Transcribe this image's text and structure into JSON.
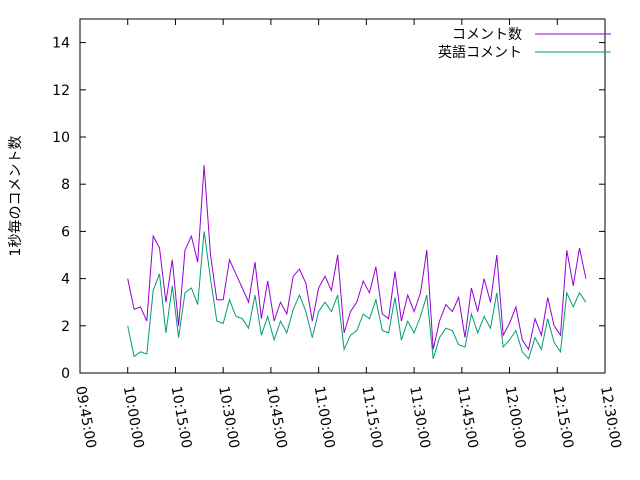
{
  "chart_data": {
    "type": "line",
    "y_label": "1秒毎のコメント数",
    "x": [
      "10:00:00",
      "10:02:00",
      "10:04:00",
      "10:06:00",
      "10:08:00",
      "10:10:00",
      "10:12:00",
      "10:14:00",
      "10:16:00",
      "10:18:00",
      "10:20:00",
      "10:22:00",
      "10:24:00",
      "10:26:00",
      "10:28:00",
      "10:30:00",
      "10:32:00",
      "10:34:00",
      "10:36:00",
      "10:38:00",
      "10:40:00",
      "10:42:00",
      "10:44:00",
      "10:46:00",
      "10:48:00",
      "10:50:00",
      "10:52:00",
      "10:54:00",
      "10:56:00",
      "10:58:00",
      "11:00:00",
      "11:02:00",
      "11:04:00",
      "11:06:00",
      "11:08:00",
      "11:10:00",
      "11:12:00",
      "11:14:00",
      "11:16:00",
      "11:18:00",
      "11:20:00",
      "11:22:00",
      "11:24:00",
      "11:26:00",
      "11:28:00",
      "11:30:00",
      "11:32:00",
      "11:34:00",
      "11:36:00",
      "11:38:00",
      "11:40:00",
      "11:42:00",
      "11:44:00",
      "11:46:00",
      "11:48:00",
      "11:50:00",
      "11:52:00",
      "11:54:00",
      "11:56:00",
      "11:58:00",
      "12:00:00",
      "12:02:00",
      "12:04:00",
      "12:06:00",
      "12:08:00",
      "12:10:00",
      "12:12:00",
      "12:14:00",
      "12:16:00",
      "12:18:00",
      "12:20:00",
      "12:22:00",
      "12:24:00"
    ],
    "series": [
      {
        "name": "コメント数",
        "color": "#9400d3",
        "values": [
          4.0,
          2.7,
          2.8,
          2.2,
          5.8,
          5.3,
          3.0,
          4.8,
          2.0,
          5.2,
          5.8,
          4.7,
          8.8,
          5.0,
          3.1,
          3.1,
          4.8,
          4.2,
          3.6,
          3.0,
          4.7,
          2.3,
          3.9,
          2.2,
          3.0,
          2.5,
          4.1,
          4.4,
          3.8,
          2.2,
          3.6,
          4.1,
          3.5,
          5.0,
          1.7,
          2.6,
          3.0,
          3.9,
          3.4,
          4.5,
          2.5,
          2.3,
          4.3,
          2.2,
          3.3,
          2.6,
          3.4,
          5.2,
          1.0,
          2.2,
          2.9,
          2.6,
          3.2,
          1.5,
          3.6,
          2.6,
          4.0,
          3.0,
          5.0,
          1.6,
          2.1,
          2.8,
          1.4,
          1.0,
          2.3,
          1.6,
          3.2,
          2.0,
          1.6,
          5.2,
          3.7,
          5.3,
          4.0
        ]
      },
      {
        "name": "英語コメント",
        "color": "#009e73",
        "values": [
          2.0,
          0.7,
          0.9,
          0.8,
          3.5,
          4.2,
          1.7,
          3.7,
          1.5,
          3.4,
          3.6,
          2.9,
          6.0,
          4.0,
          2.2,
          2.1,
          3.1,
          2.4,
          2.3,
          1.9,
          3.3,
          1.6,
          2.4,
          1.4,
          2.2,
          1.7,
          2.7,
          3.3,
          2.6,
          1.5,
          2.6,
          3.0,
          2.6,
          3.3,
          1.0,
          1.6,
          1.8,
          2.5,
          2.3,
          3.1,
          1.8,
          1.7,
          3.2,
          1.4,
          2.2,
          1.7,
          2.4,
          3.3,
          0.6,
          1.5,
          1.9,
          1.8,
          1.2,
          1.1,
          2.5,
          1.7,
          2.4,
          1.9,
          3.4,
          1.1,
          1.4,
          1.8,
          0.9,
          0.6,
          1.5,
          1.0,
          2.3,
          1.3,
          0.9,
          3.4,
          2.8,
          3.4,
          3.0
        ]
      }
    ],
    "xlim": [
      "09:45:00",
      "12:30:00"
    ],
    "xticks": [
      "09:45:00",
      "10:00:00",
      "10:15:00",
      "10:30:00",
      "10:45:00",
      "11:00:00",
      "11:15:00",
      "11:30:00",
      "11:45:00",
      "12:00:00",
      "12:15:00",
      "12:30:00"
    ],
    "ylim": [
      0,
      15
    ],
    "yticks": [
      0,
      2,
      4,
      6,
      8,
      10,
      12,
      14
    ],
    "legend": "upper right"
  }
}
